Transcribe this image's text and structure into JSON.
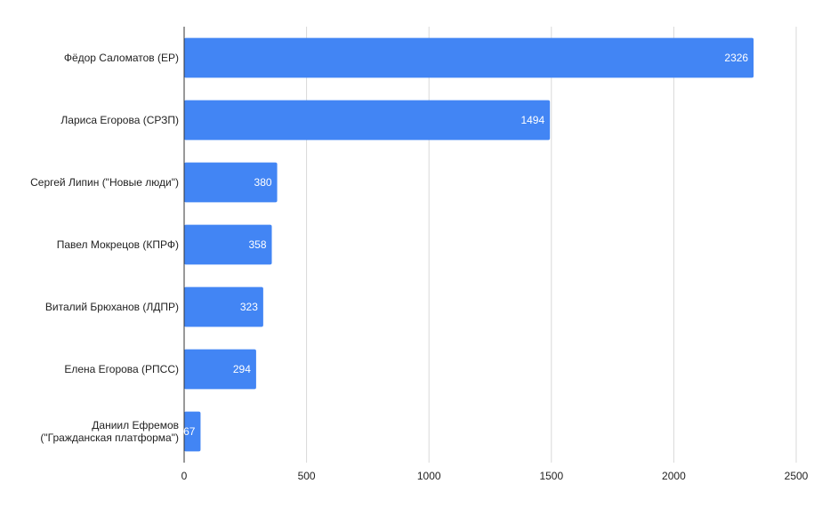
{
  "chart_data": {
    "type": "bar",
    "orientation": "horizontal",
    "categories": [
      [
        "Фёдор Саломатов (ЕР)"
      ],
      [
        "Лариса Егорова (СРЗП)"
      ],
      [
        "Сергей Липин (\"Новые люди\")"
      ],
      [
        "Павел Мокрецов (КПРФ)"
      ],
      [
        "Виталий Брюханов (ЛДПР)"
      ],
      [
        "Елена Егорова (РПСС)"
      ],
      [
        "Даниил Ефремов",
        "(\"Гражданская платформа\")"
      ]
    ],
    "values": [
      2326,
      1494,
      380,
      358,
      323,
      294,
      67
    ],
    "data_labels": [
      "2326",
      "1494",
      "380",
      "358",
      "323",
      "294",
      "67"
    ],
    "xticks": [
      "0",
      "500",
      "1000",
      "1500",
      "2000",
      "2500"
    ],
    "xlim": [
      0,
      2500
    ],
    "grid": true,
    "legend": "none",
    "colors": {
      "bar": "#4285f4",
      "grid": "#d9d9d9",
      "axis": "#333333"
    }
  }
}
